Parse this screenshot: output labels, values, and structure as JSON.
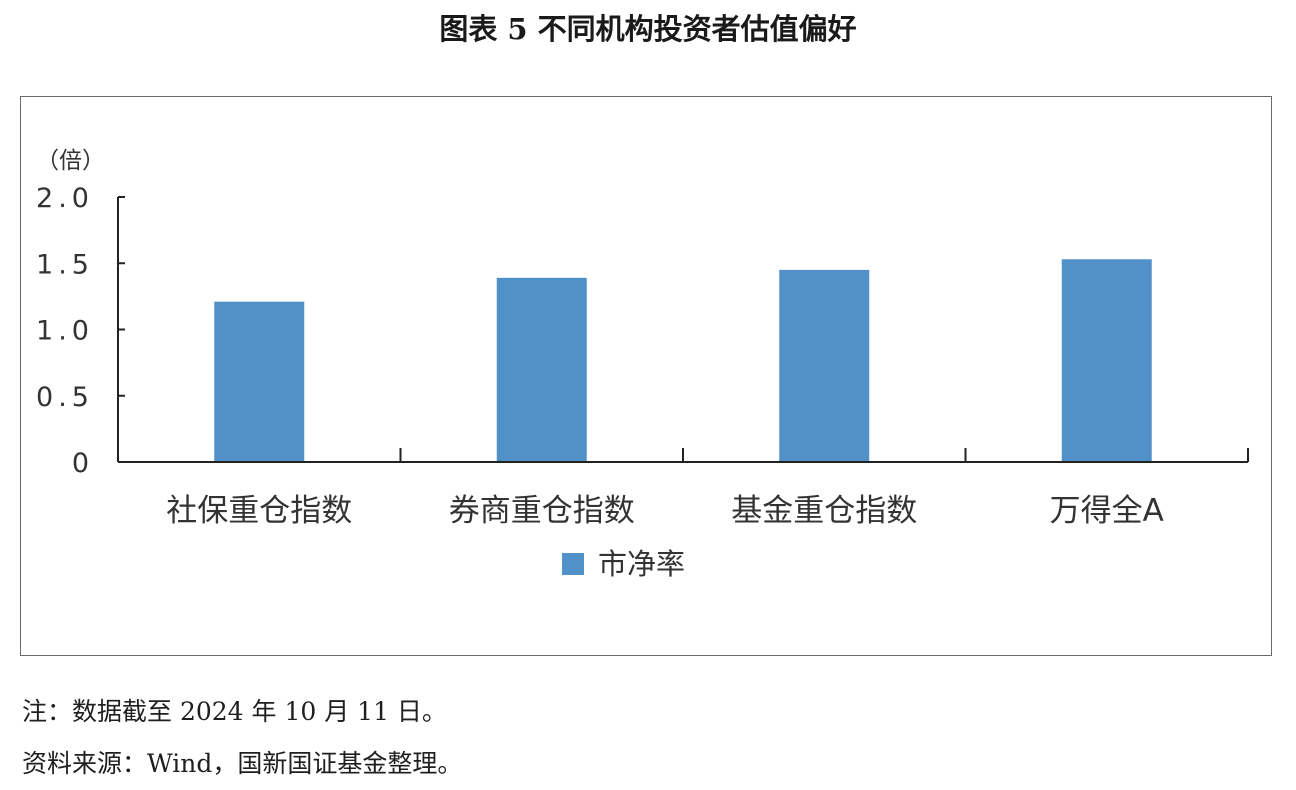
{
  "title": "图表 5 不同机构投资者估值偏好",
  "notes": {
    "note": "注：数据截至 2024 年 10 月 11 日。",
    "source": "资料来源：Wind，国新国证基金整理。"
  },
  "chart_data": {
    "type": "bar",
    "unit_label": "（倍）",
    "categories": [
      "社保重仓指数",
      "券商重仓指数",
      "基金重仓指数",
      "万得全A"
    ],
    "series": [
      {
        "name": "市净率",
        "values": [
          1.21,
          1.39,
          1.45,
          1.53
        ],
        "color": "#5191c8"
      }
    ],
    "ylim": [
      0,
      2.0
    ],
    "yticks": [
      "0",
      "0.5",
      "1.0",
      "1.5",
      "2.0"
    ],
    "ytick_values": [
      0,
      0.5,
      1.0,
      1.5,
      2.0
    ],
    "grid": false,
    "legend_position": "bottom"
  }
}
